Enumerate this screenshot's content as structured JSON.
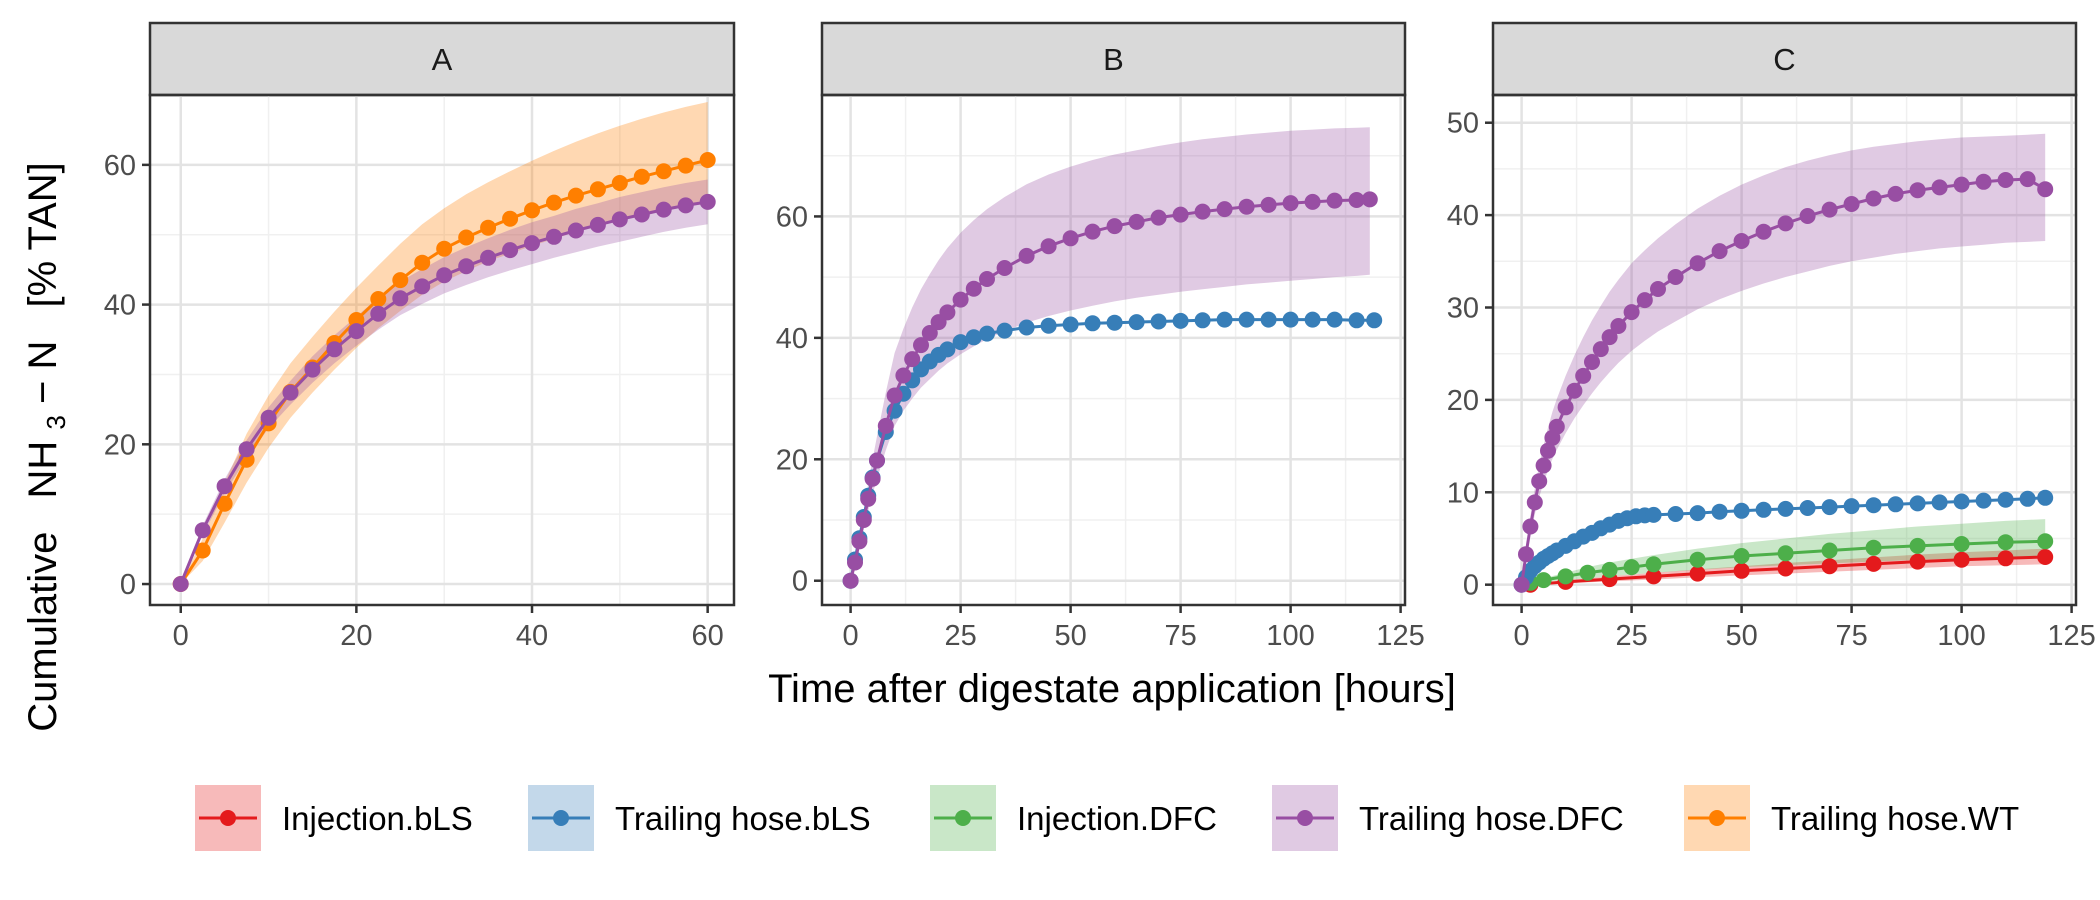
{
  "chart_data": {
    "type": "line",
    "xlabel": "Time after digestate application [hours]",
    "ylabel": {
      "prefix": "Cumulative",
      "species": "NH",
      "subscript": "3",
      "suffix": " − N",
      "unit": "[% TAN]"
    },
    "legend": {
      "placement": "bottom",
      "entries": [
        {
          "name": "Injection.bLS",
          "color": "#e41a1c"
        },
        {
          "name": "Trailing hose.bLS",
          "color": "#377eb8"
        },
        {
          "name": "Injection.DFC",
          "color": "#4daf4a"
        },
        {
          "name": "Trailing hose.DFC",
          "color": "#984ea3"
        },
        {
          "name": "Trailing hose.WT",
          "color": "#ff7f00"
        }
      ]
    },
    "grid": true,
    "panels": [
      {
        "label": "A",
        "xlim": [
          -3.5,
          63
        ],
        "ylim": [
          -3,
          70
        ],
        "xticks": [
          0,
          20,
          40,
          60
        ],
        "yticks": [
          0,
          20,
          40,
          60
        ],
        "series": [
          {
            "name": "Trailing hose.WT",
            "color": "#ff7f00",
            "interval_hours": 2.5,
            "values": [
              0,
              4.8,
              11.5,
              17.8,
              23,
              27.5,
              31,
              34.5,
              37.8,
              40.8,
              43.5,
              46,
              48,
              49.6,
              51,
              52.3,
              53.5,
              54.6,
              55.6,
              56.5,
              57.4,
              58.3,
              59.1,
              59.9,
              60.7
            ],
            "ci_low": [
              0,
              3.3,
              8.8,
              14.5,
              19.5,
              23.8,
              27.4,
              30.7,
              33.8,
              36.6,
              39.1,
              41.4,
              43.3,
              44.8,
              46.2,
              47.3,
              48.4,
              49.4,
              50.4,
              51.3,
              52.1,
              52.9,
              53.6,
              54.3,
              55
            ],
            "ci_high": [
              0,
              6.5,
              14.5,
              21.5,
              27,
              31.6,
              35.4,
              39,
              42.4,
              45.6,
              48.7,
              51.5,
              53.8,
              55.8,
              57.5,
              59.1,
              60.6,
              62,
              63.3,
              64.5,
              65.6,
              66.6,
              67.5,
              68.3,
              69
            ]
          },
          {
            "name": "Trailing hose.DFC",
            "color": "#984ea3",
            "interval_hours": 2.5,
            "values": [
              0,
              7.7,
              14,
              19.3,
              23.8,
              27.4,
              30.7,
              33.6,
              36.2,
              38.7,
              40.9,
              42.6,
              44.2,
              45.5,
              46.7,
              47.8,
              48.8,
              49.7,
              50.6,
              51.4,
              52.2,
              52.9,
              53.6,
              54.2,
              54.7
            ],
            "ci_low": [
              0,
              7,
              13,
              18,
              22.3,
              25.7,
              28.8,
              31.6,
              34.1,
              36.4,
              38.5,
              40.1,
              41.6,
              42.8,
              43.9,
              44.9,
              45.8,
              46.7,
              47.5,
              48.3,
              49,
              49.7,
              50.4,
              51,
              51.5
            ],
            "ci_high": [
              0,
              8.4,
              15,
              20.6,
              25.3,
              29.1,
              32.6,
              35.6,
              38.3,
              41,
              43.3,
              45.1,
              46.8,
              48.2,
              49.5,
              50.7,
              51.8,
              52.7,
              53.7,
              54.5,
              55.4,
              56.1,
              56.8,
              57.4,
              57.9
            ]
          }
        ]
      },
      {
        "label": "B",
        "xlim": [
          -6.5,
          126
        ],
        "ylim": [
          -4,
          80
        ],
        "xticks": [
          0,
          25,
          50,
          75,
          100,
          125
        ],
        "yticks": [
          0,
          20,
          40,
          60
        ],
        "series": [
          {
            "name": "Trailing hose.bLS",
            "color": "#377eb8",
            "x": [
              0,
              1,
              2,
              3,
              4,
              5,
              6,
              8,
              10,
              12,
              14,
              16,
              18,
              20,
              22,
              25,
              28,
              31,
              35,
              40,
              45,
              50,
              55,
              60,
              65,
              70,
              75,
              80,
              85,
              90,
              95,
              100,
              105,
              110,
              115,
              119
            ],
            "values": [
              0,
              3.5,
              7,
              10.5,
              14,
              17,
              19.8,
              24.5,
              28,
              30.8,
              33,
              34.8,
              36.1,
              37.2,
              38.1,
              39.3,
              40.1,
              40.7,
              41.2,
              41.7,
              42,
              42.2,
              42.4,
              42.5,
              42.6,
              42.7,
              42.8,
              42.9,
              43,
              43,
              43,
              43,
              43,
              43,
              42.9,
              42.9
            ]
          },
          {
            "name": "Trailing hose.DFC",
            "color": "#984ea3",
            "x": [
              0,
              1,
              2,
              3,
              4,
              5,
              6,
              8,
              10,
              12,
              14,
              16,
              18,
              20,
              22,
              25,
              28,
              31,
              35,
              40,
              45,
              50,
              55,
              60,
              65,
              70,
              75,
              80,
              85,
              90,
              95,
              100,
              105,
              110,
              115,
              118
            ],
            "values": [
              0,
              3,
              6.5,
              10,
              13.5,
              16.8,
              19.8,
              25.5,
              30.5,
              33.8,
              36.5,
              38.8,
              40.8,
              42.6,
              44.2,
              46.3,
              48.1,
              49.7,
              51.5,
              53.5,
              55.1,
              56.4,
              57.5,
              58.4,
              59.1,
              59.8,
              60.3,
              60.8,
              61.2,
              61.6,
              61.9,
              62.2,
              62.4,
              62.6,
              62.7,
              62.8
            ],
            "ci_low": [
              0,
              2.5,
              5.5,
              8.5,
              11.5,
              14.3,
              16.8,
              21.5,
              25.5,
              28,
              30,
              31.8,
              33.2,
              34.6,
              35.8,
              37.3,
              38.6,
              39.8,
              41.1,
              42.5,
              43.6,
              44.5,
              45.3,
              46,
              46.6,
              47.1,
              47.6,
              48,
              48.4,
              48.8,
              49.1,
              49.4,
              49.7,
              50,
              50.2,
              50.4
            ],
            "ci_high": [
              0,
              3.6,
              7.6,
              11.8,
              16,
              20,
              23.8,
              31,
              37.5,
              41.5,
              45,
              48,
              50.5,
              52.8,
              54.8,
              57.3,
              59.4,
              61.2,
              63.2,
              65.3,
              66.9,
              68.2,
              69.3,
              70.2,
              70.9,
              71.6,
              72.2,
              72.7,
              73.1,
              73.5,
              73.8,
              74.1,
              74.3,
              74.5,
              74.6,
              74.7
            ]
          }
        ]
      },
      {
        "label": "C",
        "xlim": [
          -6.5,
          126
        ],
        "ylim": [
          -2.2,
          53
        ],
        "xticks": [
          0,
          25,
          50,
          75,
          100,
          125
        ],
        "yticks": [
          0,
          10,
          20,
          30,
          40,
          50
        ],
        "series": [
          {
            "name": "Injection.bLS",
            "color": "#e41a1c",
            "x": [
              2,
              10,
              20,
              30,
              40,
              50,
              60,
              70,
              80,
              90,
              100,
              110,
              119
            ],
            "values": [
              0,
              0.3,
              0.6,
              0.9,
              1.2,
              1.5,
              1.75,
              2,
              2.25,
              2.5,
              2.7,
              2.85,
              3
            ],
            "ci_low": [
              0,
              0.15,
              0.35,
              0.55,
              0.8,
              1,
              1.2,
              1.4,
              1.6,
              1.8,
              2,
              2.1,
              2.2
            ],
            "ci_high": [
              0,
              0.5,
              0.9,
              1.3,
              1.65,
              2,
              2.35,
              2.65,
              2.95,
              3.25,
              3.5,
              3.7,
              3.9
            ]
          },
          {
            "name": "Injection.DFC",
            "color": "#4daf4a",
            "x": [
              2,
              5,
              10,
              15,
              20,
              25,
              30,
              40,
              50,
              60,
              70,
              80,
              90,
              100,
              110,
              119
            ],
            "values": [
              0.2,
              0.5,
              0.9,
              1.3,
              1.6,
              1.9,
              2.2,
              2.7,
              3.1,
              3.4,
              3.7,
              4,
              4.2,
              4.4,
              4.6,
              4.7
            ],
            "ci_low": [
              0.1,
              0.3,
              0.5,
              0.7,
              0.9,
              1.1,
              1.3,
              1.6,
              1.9,
              2.1,
              2.3,
              2.5,
              2.7,
              2.8,
              3,
              3.1
            ],
            "ci_high": [
              0.3,
              0.7,
              1.3,
              1.9,
              2.4,
              2.8,
              3.2,
              3.9,
              4.5,
              5,
              5.5,
              5.9,
              6.3,
              6.6,
              6.9,
              7.1
            ]
          },
          {
            "name": "Trailing hose.bLS",
            "color": "#377eb8",
            "x": [
              0,
              1,
              2,
              3,
              4,
              5,
              6,
              7,
              8,
              10,
              12,
              14,
              16,
              18,
              20,
              22,
              24,
              26,
              28,
              30,
              35,
              40,
              45,
              50,
              55,
              60,
              65,
              70,
              75,
              80,
              85,
              90,
              95,
              100,
              105,
              110,
              115,
              119
            ],
            "values": [
              0,
              0.8,
              1.5,
              2,
              2.4,
              2.8,
              3.1,
              3.4,
              3.7,
              4.2,
              4.7,
              5.2,
              5.6,
              6.1,
              6.5,
              6.9,
              7.2,
              7.4,
              7.5,
              7.55,
              7.65,
              7.75,
              7.9,
              8,
              8.1,
              8.2,
              8.3,
              8.4,
              8.5,
              8.6,
              8.7,
              8.8,
              8.9,
              9,
              9.1,
              9.2,
              9.3,
              9.4
            ]
          },
          {
            "name": "Trailing hose.DFC",
            "color": "#984ea3",
            "x": [
              0,
              1,
              2,
              3,
              4,
              5,
              6,
              7,
              8,
              10,
              12,
              14,
              16,
              18,
              20,
              22,
              25,
              28,
              31,
              35,
              40,
              45,
              50,
              55,
              60,
              65,
              70,
              75,
              80,
              85,
              90,
              95,
              100,
              105,
              110,
              115,
              119
            ],
            "values": [
              0,
              3.3,
              6.3,
              8.9,
              11.2,
              12.9,
              14.5,
              15.9,
              17.1,
              19.2,
              21,
              22.6,
              24.1,
              25.5,
              26.8,
              28,
              29.5,
              30.8,
              32,
              33.3,
              34.8,
              36.1,
              37.2,
              38.2,
              39.1,
              39.9,
              40.6,
              41.2,
              41.8,
              42.3,
              42.7,
              43,
              43.3,
              43.6,
              43.8,
              43.9,
              42.8
            ],
            "ci_low": [
              0,
              2.8,
              5.4,
              7.6,
              9.5,
              11,
              12.4,
              13.6,
              14.6,
              16.4,
              18,
              19.4,
              20.7,
              21.9,
              23,
              24,
              25.3,
              26.4,
              27.4,
              28.5,
              29.8,
              30.9,
              31.8,
              32.6,
              33.3,
              33.9,
              34.5,
              35,
              35.4,
              35.8,
              36.1,
              36.4,
              36.6,
              36.8,
              37,
              37.1,
              37.2
            ],
            "ci_high": [
              0,
              3.9,
              7.4,
              10.4,
              13,
              15.1,
              17,
              18.7,
              20.1,
              22.6,
              24.8,
              26.8,
              28.6,
              30.2,
              31.7,
              33,
              34.8,
              36.2,
              37.5,
              39,
              40.7,
              42.1,
              43.3,
              44.3,
              45.2,
              45.9,
              46.5,
              47,
              47.4,
              47.7,
              48,
              48.2,
              48.4,
              48.5,
              48.6,
              48.7,
              48.8
            ]
          }
        ]
      }
    ]
  }
}
